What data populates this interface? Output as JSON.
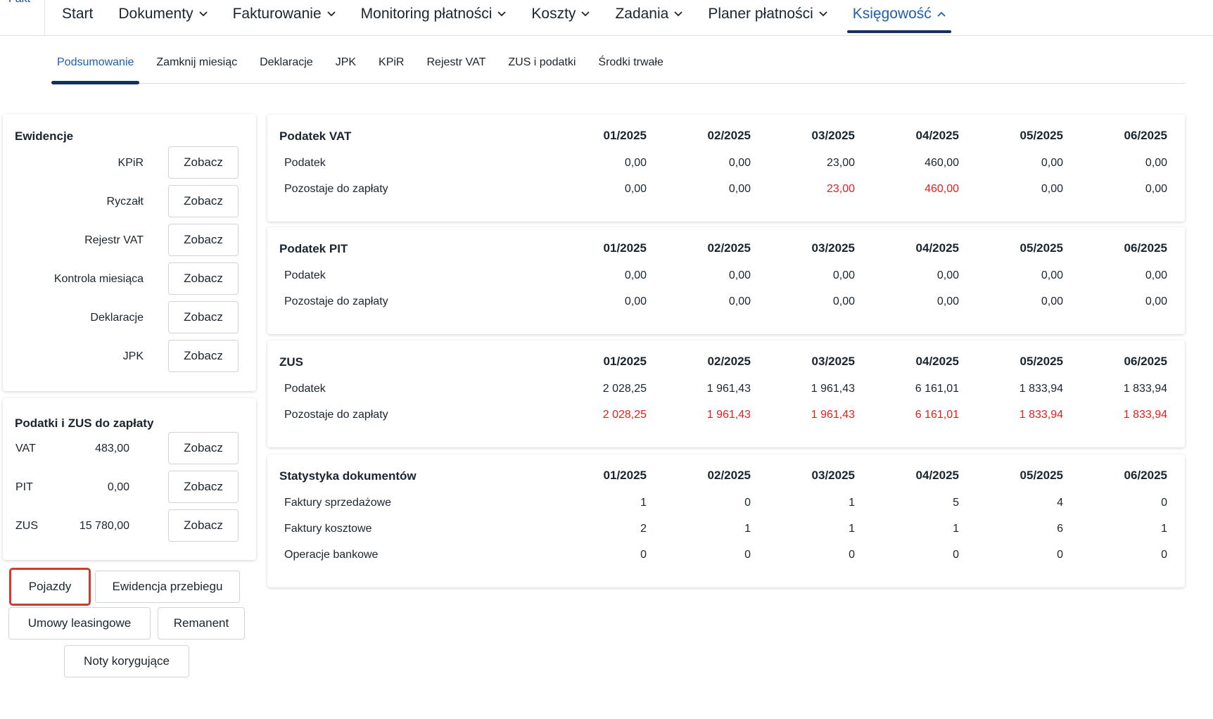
{
  "logo": "Fakt",
  "nav": {
    "items": [
      {
        "label": "Start",
        "dropdown": false
      },
      {
        "label": "Dokumenty",
        "dropdown": true
      },
      {
        "label": "Fakturowanie",
        "dropdown": true
      },
      {
        "label": "Monitoring płatności",
        "dropdown": true
      },
      {
        "label": "Koszty",
        "dropdown": true
      },
      {
        "label": "Zadania",
        "dropdown": true
      },
      {
        "label": "Planer płatności",
        "dropdown": true
      },
      {
        "label": "Księgowość",
        "dropdown": true,
        "active": true
      }
    ]
  },
  "subnav": {
    "items": [
      "Podsumowanie",
      "Zamknij miesiąc",
      "Deklaracje",
      "JPK",
      "KPiR",
      "Rejestr VAT",
      "ZUS i podatki",
      "Środki trwałe"
    ]
  },
  "ewidencje": {
    "title": "Ewidencje",
    "rows": [
      {
        "label": "KPiR",
        "button": "Zobacz"
      },
      {
        "label": "Ryczałt",
        "button": "Zobacz"
      },
      {
        "label": "Rejestr VAT",
        "button": "Zobacz"
      },
      {
        "label": "Kontrola miesiąca",
        "button": "Zobacz"
      },
      {
        "label": "Deklaracje",
        "button": "Zobacz"
      },
      {
        "label": "JPK",
        "button": "Zobacz"
      }
    ]
  },
  "podatki": {
    "title": "Podatki i ZUS do zapłaty",
    "rows": [
      {
        "label": "VAT",
        "value": "483,00",
        "button": "Zobacz"
      },
      {
        "label": "PIT",
        "value": "0,00",
        "button": "Zobacz"
      },
      {
        "label": "ZUS",
        "value": "15 780,00",
        "button": "Zobacz"
      }
    ]
  },
  "extra_buttons": {
    "pojazdy": "Pojazdy",
    "ewidencja_przebiegu": "Ewidencja przebiegu",
    "umowy_leasingowe": "Umowy leasingowe",
    "remanent": "Remanent",
    "noty_korygujace": "Noty korygujące"
  },
  "months": [
    "01/2025",
    "02/2025",
    "03/2025",
    "04/2025",
    "05/2025",
    "06/2025"
  ],
  "tables": [
    {
      "title": "Podatek VAT",
      "rows": [
        {
          "label": "Podatek",
          "values": [
            "0,00",
            "0,00",
            "23,00",
            "460,00",
            "0,00",
            "0,00"
          ],
          "red": [
            false,
            false,
            false,
            false,
            false,
            false
          ]
        },
        {
          "label": "Pozostaje do zapłaty",
          "values": [
            "0,00",
            "0,00",
            "23,00",
            "460,00",
            "0,00",
            "0,00"
          ],
          "red": [
            false,
            false,
            true,
            true,
            false,
            false
          ]
        }
      ]
    },
    {
      "title": "Podatek PIT",
      "rows": [
        {
          "label": "Podatek",
          "values": [
            "0,00",
            "0,00",
            "0,00",
            "0,00",
            "0,00",
            "0,00"
          ],
          "red": [
            false,
            false,
            false,
            false,
            false,
            false
          ]
        },
        {
          "label": "Pozostaje do zapłaty",
          "values": [
            "0,00",
            "0,00",
            "0,00",
            "0,00",
            "0,00",
            "0,00"
          ],
          "red": [
            false,
            false,
            false,
            false,
            false,
            false
          ]
        }
      ]
    },
    {
      "title": "ZUS",
      "rows": [
        {
          "label": "Podatek",
          "values": [
            "2 028,25",
            "1 961,43",
            "1 961,43",
            "6 161,01",
            "1 833,94",
            "1 833,94"
          ],
          "red": [
            false,
            false,
            false,
            false,
            false,
            false
          ]
        },
        {
          "label": "Pozostaje do zapłaty",
          "values": [
            "2 028,25",
            "1 961,43",
            "1 961,43",
            "6 161,01",
            "1 833,94",
            "1 833,94"
          ],
          "red": [
            true,
            true,
            true,
            true,
            true,
            true
          ]
        }
      ]
    },
    {
      "title": "Statystyka dokumentów",
      "rows": [
        {
          "label": "Faktury sprzedażowe",
          "values": [
            "1",
            "0",
            "1",
            "5",
            "4",
            "0"
          ],
          "red": [
            false,
            false,
            false,
            false,
            false,
            false
          ]
        },
        {
          "label": "Faktury kosztowe",
          "values": [
            "2",
            "1",
            "1",
            "1",
            "6",
            "1"
          ],
          "red": [
            false,
            false,
            false,
            false,
            false,
            false
          ]
        },
        {
          "label": "Operacje bankowe",
          "values": [
            "0",
            "0",
            "0",
            "0",
            "0",
            "0"
          ],
          "red": [
            false,
            false,
            false,
            false,
            false,
            false
          ]
        }
      ]
    }
  ],
  "colors": {
    "accent": "#1f5fae",
    "active_underline": "#12315e",
    "negative": "#e02020",
    "highlight_border": "#d2392f"
  }
}
